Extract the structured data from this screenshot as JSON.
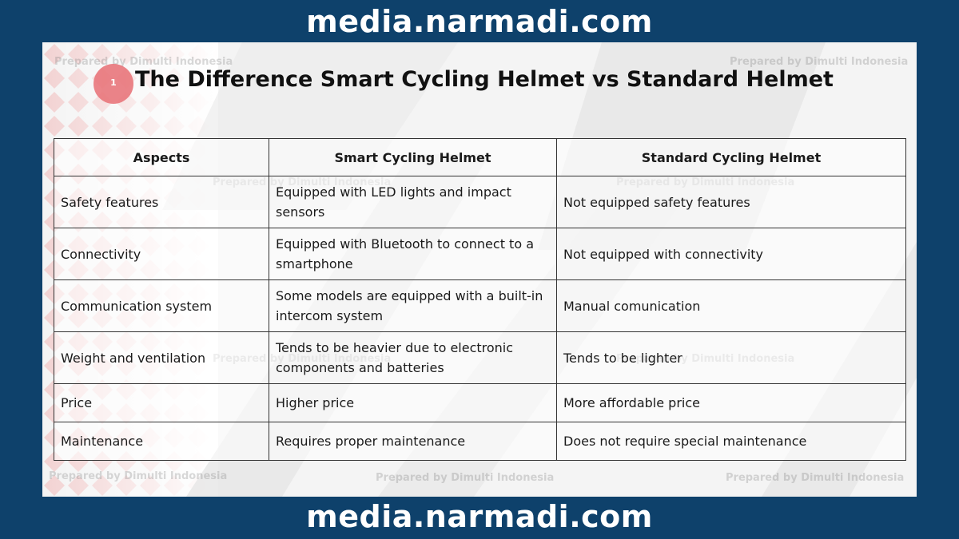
{
  "site": {
    "banner_top": "media.narmadi.com",
    "banner_bottom": "media.narmadi.com"
  },
  "watermark": "Prepared by Dimulti Indonesia",
  "slide": {
    "badge_number": "1",
    "title": "The Difference Smart Cycling Helmet vs Standard Helmet"
  },
  "table": {
    "headers": [
      "Aspects",
      "Smart Cycling Helmet",
      "Standard Cycling Helmet"
    ],
    "rows": [
      [
        "Safety features",
        "Equipped with LED lights and impact sensors",
        "Not equipped safety features"
      ],
      [
        "Connectivity",
        "Equipped with Bluetooth to connect to a smartphone",
        "Not equipped with connectivity"
      ],
      [
        "Communication system",
        "Some models are equipped with a built-in intercom system",
        "Manual comunication"
      ],
      [
        "Weight and ventilation",
        "Tends to be heavier due to electronic components and batteries",
        "Tends to be lighter"
      ],
      [
        "Price",
        "Higher price",
        "More affordable price"
      ],
      [
        "Maintenance",
        "Requires proper maintenance",
        "Does not require special maintenance"
      ]
    ]
  },
  "colors": {
    "frame": "#0e416b",
    "panel": "#f4f4f4",
    "badge": "#e9777c",
    "text": "#111111"
  }
}
